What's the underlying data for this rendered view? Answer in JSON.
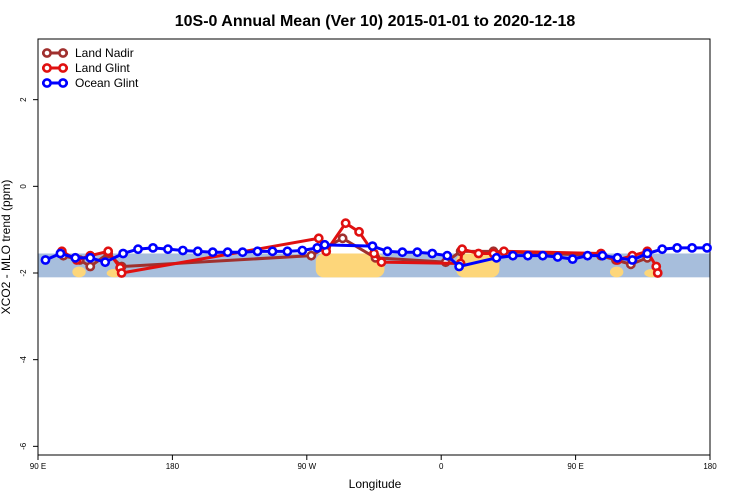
{
  "chart_data": {
    "type": "line",
    "title": "10S-0 Annual Mean (Ver 10)   2015-01-01 to 2020-12-18",
    "xlabel": "Longitude",
    "ylabel": "XCO2 - MLO trend (ppm)",
    "xlim": [
      90,
      540
    ],
    "ylim": [
      -6.2,
      3.4
    ],
    "x_ticks": [
      {
        "value": 90,
        "label": "90 E"
      },
      {
        "value": 180,
        "label": "180"
      },
      {
        "value": 270,
        "label": "90 W"
      },
      {
        "value": 360,
        "label": "0"
      },
      {
        "value": 450,
        "label": "90 E"
      },
      {
        "value": 540,
        "label": "180"
      }
    ],
    "y_ticks": [
      {
        "value": 2,
        "label": "2"
      },
      {
        "value": 0,
        "label": "0"
      },
      {
        "value": -2,
        "label": "-2"
      },
      {
        "value": -4,
        "label": "-4"
      },
      {
        "value": -6,
        "label": "-6"
      }
    ],
    "legend_position": "top-left",
    "background_map": {
      "ocean_color": "#a7bedc",
      "land_color": "#fdd67a",
      "y_range": [
        -2.1,
        -1.55
      ]
    },
    "series": [
      {
        "name": "Land Nadir",
        "color": "#a0302e",
        "x": [
          107,
          118,
          125,
          137,
          146,
          273,
          283,
          294,
          316,
          363,
          373,
          395,
          467,
          477,
          487,
          498
        ],
        "y": [
          -1.6,
          -1.7,
          -1.85,
          -1.55,
          -1.85,
          -1.6,
          -1.4,
          -1.2,
          -1.65,
          -1.75,
          -1.5,
          -1.5,
          -1.6,
          -1.7,
          -1.8,
          -1.65
        ]
      },
      {
        "name": "Land Glint",
        "color": "#e01010",
        "x": [
          106,
          116,
          125,
          137,
          145,
          146,
          278,
          283,
          296,
          305,
          315,
          320,
          373,
          374,
          385,
          395,
          402,
          467,
          478,
          488,
          498,
          504,
          505
        ],
        "y": [
          -1.5,
          -1.7,
          -1.6,
          -1.5,
          -1.88,
          -2.0,
          -1.2,
          -1.5,
          -0.85,
          -1.05,
          -1.55,
          -1.75,
          -1.78,
          -1.45,
          -1.55,
          -1.55,
          -1.5,
          -1.55,
          -1.7,
          -1.6,
          -1.5,
          -1.85,
          -2.0
        ]
      },
      {
        "name": "Ocean Glint",
        "color": "#0000ff",
        "x": [
          95,
          105,
          115,
          125,
          135,
          147,
          157,
          167,
          177,
          187,
          197,
          207,
          217,
          227,
          237,
          247,
          257,
          267,
          277,
          282,
          314,
          324,
          334,
          344,
          354,
          364,
          372,
          397,
          408,
          418,
          428,
          438,
          448,
          458,
          468,
          478,
          488,
          498,
          508,
          518,
          528,
          538
        ],
        "y": [
          -1.7,
          -1.55,
          -1.65,
          -1.65,
          -1.75,
          -1.55,
          -1.45,
          -1.42,
          -1.45,
          -1.48,
          -1.5,
          -1.52,
          -1.52,
          -1.52,
          -1.5,
          -1.5,
          -1.5,
          -1.48,
          -1.42,
          -1.35,
          -1.38,
          -1.5,
          -1.52,
          -1.52,
          -1.55,
          -1.6,
          -1.85,
          -1.65,
          -1.6,
          -1.6,
          -1.6,
          -1.63,
          -1.68,
          -1.6,
          -1.6,
          -1.65,
          -1.7,
          -1.55,
          -1.45,
          -1.42,
          -1.42,
          -1.42
        ]
      }
    ]
  }
}
